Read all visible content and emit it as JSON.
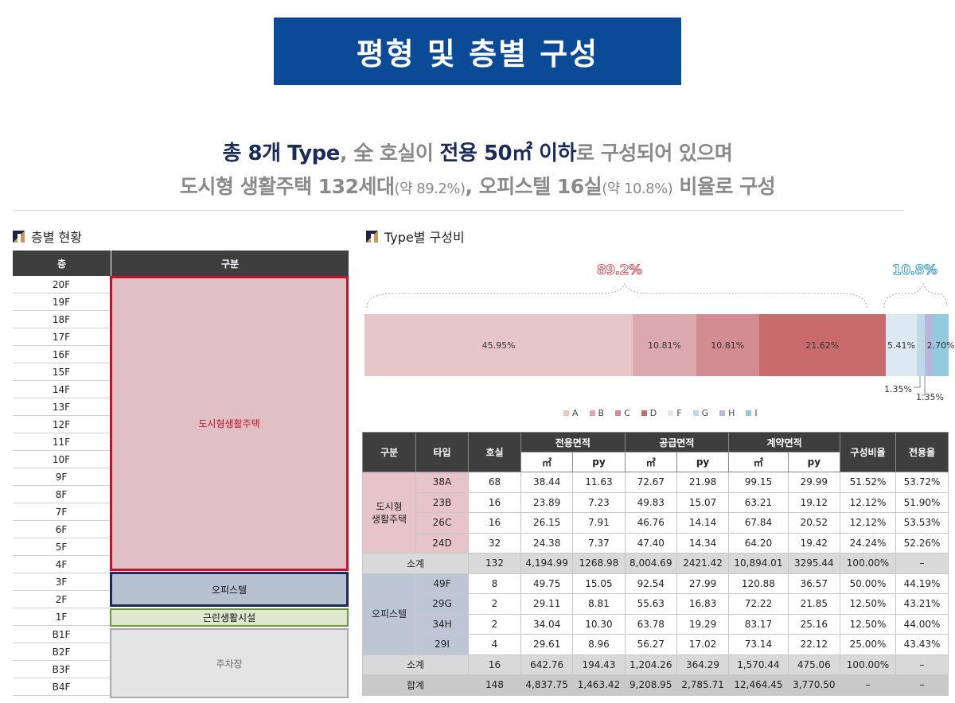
{
  "title": "평형 및 층별 구성",
  "headline": {
    "l1_a": "총 8개 Type",
    "l1_b": ", 全 호실이 ",
    "l1_c": "전용 50㎡ 이하",
    "l1_d": "로 구성되어 있으며",
    "l2_a": "도시형 생활주택 132세대",
    "l2_b": "(약 89.2%)",
    "l2_c": ", 오피스텔 16실",
    "l2_d": "(약 10.8%)",
    "l2_e": " 비율로 구성"
  },
  "floor_section": {
    "title": "층별 현황",
    "header_floor": "층",
    "header_use": "구분",
    "floors": [
      "20F",
      "19F",
      "18F",
      "17F",
      "16F",
      "15F",
      "14F",
      "13F",
      "12F",
      "11F",
      "10F",
      "9F",
      "8F",
      "7F",
      "6F",
      "5F",
      "4F",
      "3F",
      "2F",
      "1F",
      "B1F",
      "B2F",
      "B3F",
      "B4F"
    ],
    "uses": {
      "residential": "도시형생활주택",
      "officetel": "오피스텔",
      "retail": "근린생활시설",
      "parking": "주차장"
    }
  },
  "type_section": {
    "title": "Type별 구성비",
    "group_residential_pct": "89.2%",
    "group_officetel_pct": "10.8%"
  },
  "chart_data": {
    "type": "bar",
    "orientation": "stacked-horizontal",
    "categories": [
      "A",
      "B",
      "C",
      "D",
      "F",
      "G",
      "H",
      "I"
    ],
    "values": [
      45.95,
      10.81,
      10.81,
      21.62,
      5.41,
      1.35,
      1.35,
      2.7
    ],
    "labels": [
      "45.95%",
      "10.81%",
      "10.81%",
      "21.62%",
      "5.41%",
      "1.35%",
      "1.35%",
      "2.70%"
    ],
    "colors": [
      "#e7c6c9",
      "#dcaaae",
      "#d38d92",
      "#c96a6d",
      "#dde9f2",
      "#c0d9e6",
      "#b4b8da",
      "#93cadf"
    ],
    "legend": "bottom"
  },
  "table": {
    "headers": {
      "group": "구분",
      "type": "타입",
      "units": "호실",
      "excl": "전용면적",
      "supply": "공급면적",
      "contract": "계약면적",
      "ratio": "구성비율",
      "eff": "전용율",
      "m2": "㎡",
      "py": "py"
    },
    "group1": "도시형\n생활주택",
    "group2": "오피스텔",
    "rows1": [
      [
        "38A",
        "68",
        "38.44",
        "11.63",
        "72.67",
        "21.98",
        "99.15",
        "29.99",
        "51.52%",
        "53.72%"
      ],
      [
        "23B",
        "16",
        "23.89",
        "7.23",
        "49.83",
        "15.07",
        "63.21",
        "19.12",
        "12.12%",
        "51.90%"
      ],
      [
        "26C",
        "16",
        "26.15",
        "7.91",
        "46.76",
        "14.14",
        "67.84",
        "20.52",
        "12.12%",
        "53.53%"
      ],
      [
        "24D",
        "32",
        "24.38",
        "7.37",
        "47.40",
        "14.34",
        "64.20",
        "19.42",
        "24.24%",
        "52.26%"
      ]
    ],
    "sub1": [
      "소계",
      "132",
      "4,194.99",
      "1268.98",
      "8,004.69",
      "2421.42",
      "10,894.01",
      "3295.44",
      "100.00%",
      "–"
    ],
    "rows2": [
      [
        "49F",
        "8",
        "49.75",
        "15.05",
        "92.54",
        "27.99",
        "120.88",
        "36.57",
        "50.00%",
        "44.19%"
      ],
      [
        "29G",
        "2",
        "29.11",
        "8.81",
        "55.63",
        "16.83",
        "72.22",
        "21.85",
        "12.50%",
        "43.21%"
      ],
      [
        "34H",
        "2",
        "34.04",
        "10.30",
        "63.78",
        "19.29",
        "83.17",
        "25.16",
        "12.50%",
        "44.00%"
      ],
      [
        "29I",
        "4",
        "29.61",
        "8.96",
        "56.27",
        "17.02",
        "73.14",
        "22.12",
        "25.00%",
        "43.43%"
      ]
    ],
    "sub2": [
      "소계",
      "16",
      "642.76",
      "194.43",
      "1,204.26",
      "364.29",
      "1,570.44",
      "475.06",
      "100.00%",
      "–"
    ],
    "total": [
      "합계",
      "148",
      "4,837.75",
      "1,463.42",
      "9,208.95",
      "2,785.71",
      "12,464.45",
      "3,770.50",
      "–",
      "–"
    ]
  }
}
